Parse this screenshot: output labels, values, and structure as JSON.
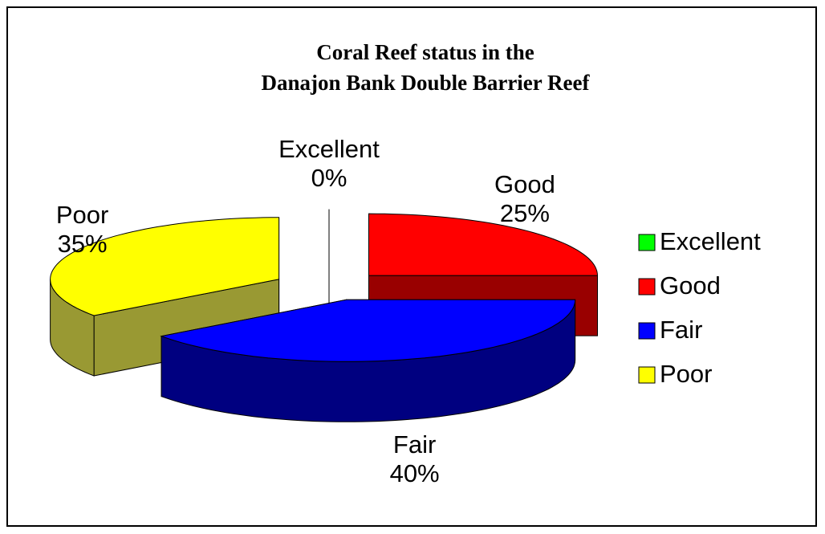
{
  "chart_data": {
    "type": "pie",
    "title": [
      "Coral Reef status in the",
      "Danajon Bank Double Barrier Reef"
    ],
    "categories": [
      "Excellent",
      "Good",
      "Fair",
      "Poor"
    ],
    "values": [
      0,
      25,
      40,
      35
    ],
    "value_labels": [
      "0%",
      "25%",
      "40%",
      "35%"
    ],
    "colors": [
      "#00ff00",
      "#ff0000",
      "#0000ff",
      "#ffff00"
    ],
    "side_colors": [
      "#008000",
      "#990000",
      "#000080",
      "#999933"
    ],
    "legend": "right"
  }
}
